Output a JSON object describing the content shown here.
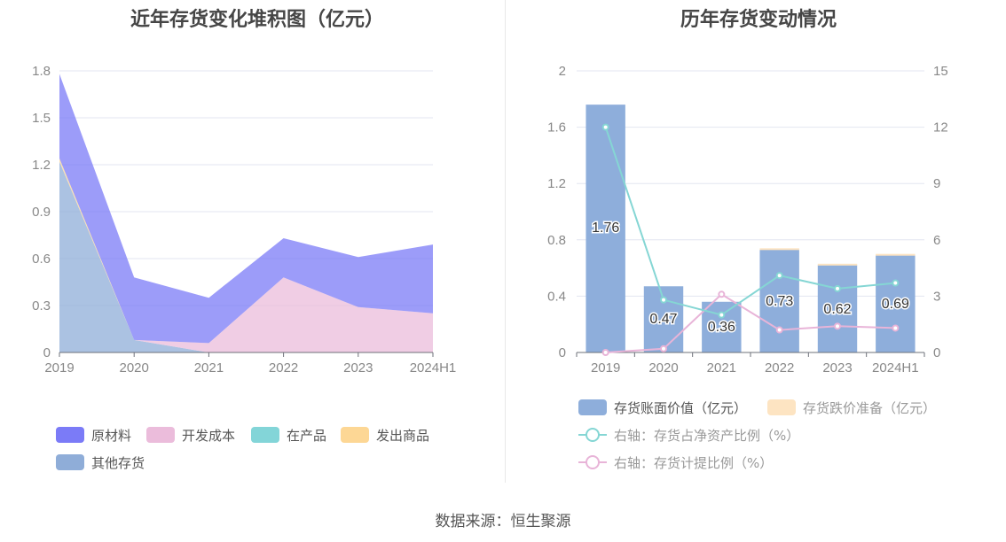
{
  "left_chart": {
    "title": "近年存货变化堆积图（亿元）"
  },
  "right_chart": {
    "title": "历年存货变动情况"
  },
  "source": "数据来源：恒生聚源",
  "chart_data": [
    {
      "type": "area",
      "title": "近年存货变化堆积图（亿元）",
      "stacked": true,
      "categories": [
        "2019",
        "2020",
        "2021",
        "2022",
        "2023",
        "2024H1"
      ],
      "ylim": [
        0,
        1.8
      ],
      "yticks": [
        "0",
        "0.3",
        "0.6",
        "0.9",
        "1.2",
        "1.5",
        "1.8"
      ],
      "grid": true,
      "legend_position": "bottom",
      "series": [
        {
          "name": "其他存货",
          "color": "#8fadd8",
          "values": [
            1.22,
            0.08,
            0.0,
            0.0,
            0.0,
            0.0
          ]
        },
        {
          "name": "发出商品",
          "color": "#fdd795",
          "values": [
            0.02,
            0.0,
            0.0,
            0.0,
            0.0,
            0.0
          ]
        },
        {
          "name": "在产品",
          "color": "#83d5d8",
          "values": [
            0.0,
            0.0,
            0.0,
            0.0,
            0.0,
            0.0
          ]
        },
        {
          "name": "开发成本",
          "color": "#ebbcdb",
          "values": [
            0.0,
            0.0,
            0.06,
            0.48,
            0.29,
            0.25
          ]
        },
        {
          "name": "原材料",
          "color": "#7b7bf7",
          "values": [
            0.54,
            0.4,
            0.29,
            0.25,
            0.32,
            0.44
          ]
        }
      ]
    },
    {
      "type": "bar",
      "title": "历年存货变动情况",
      "categories": [
        "2019",
        "2020",
        "2021",
        "2022",
        "2023",
        "2024H1"
      ],
      "ylim": [
        0,
        2
      ],
      "yticks": [
        "0",
        "0.4",
        "0.8",
        "1.2",
        "1.6",
        "2"
      ],
      "y2lim": [
        0,
        15
      ],
      "y2ticks": [
        "0",
        "3",
        "6",
        "9",
        "12",
        "15"
      ],
      "grid": true,
      "legend_position": "bottom",
      "series": [
        {
          "name": "存货账面价值（亿元）",
          "kind": "bar",
          "color": "#8eaedb",
          "values": [
            1.76,
            0.47,
            0.36,
            0.73,
            0.62,
            0.69
          ],
          "labels": [
            "1.76",
            "0.47",
            "0.36",
            "0.73",
            "0.62",
            "0.69"
          ]
        },
        {
          "name": "存货跌价准备（亿元）",
          "kind": "bar",
          "color": "#fde4c2",
          "values": [
            0.0,
            0.0,
            0.0,
            0.01,
            0.01,
            0.01
          ]
        },
        {
          "name": "右轴：存货占净资产比例（%）",
          "kind": "line",
          "axis": "right",
          "color": "#85d6d4",
          "values": [
            12.0,
            2.8,
            2.0,
            4.1,
            3.4,
            3.7
          ]
        },
        {
          "name": "右轴：存货计提比例（%）",
          "kind": "line",
          "axis": "right",
          "color": "#e8b4d8",
          "values": [
            0.0,
            0.2,
            3.1,
            1.2,
            1.4,
            1.3
          ]
        }
      ]
    }
  ]
}
